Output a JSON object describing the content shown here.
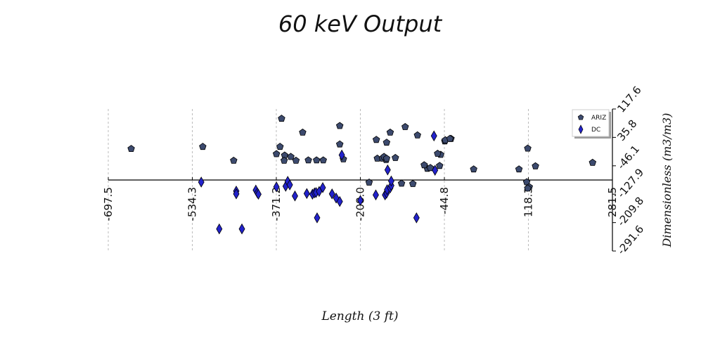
{
  "chart_data": {
    "type": "scatter",
    "title": "60 keV Output",
    "xlabel": "Length (3 ft)",
    "ylabel": "Dimensionless (m3/m3)",
    "xlim": [
      -697.5,
      281.5
    ],
    "ylim": [
      -291.6,
      117.6
    ],
    "xticks": [
      "-697.5",
      "-534.3",
      "-371.2",
      "-208.0",
      "-44.8",
      "118.3",
      "281.5"
    ],
    "yticks": [
      "117.6",
      "35.8",
      "-46.1",
      "-127.9",
      "-209.8",
      "-291.6"
    ],
    "grid": "x-only dashed",
    "legend_position": "top-right",
    "series": [
      {
        "name": "ARIZ",
        "marker": "pentagon",
        "color": "#3c4a6e",
        "points": [
          [
            -653,
            3
          ],
          [
            -514,
            9
          ],
          [
            -361,
            90
          ],
          [
            -320,
            50
          ],
          [
            -364,
            9
          ],
          [
            -371,
            -12
          ],
          [
            -355,
            -16
          ],
          [
            -343,
            -20
          ],
          [
            -356,
            -31
          ],
          [
            -333,
            -31
          ],
          [
            -309,
            -30
          ],
          [
            -293,
            -30
          ],
          [
            -280,
            -30
          ],
          [
            -248,
            69
          ],
          [
            -248,
            16
          ],
          [
            -241,
            -27
          ],
          [
            -454,
            -31
          ],
          [
            -191,
            -94
          ],
          [
            -177,
            29
          ],
          [
            -157,
            21
          ],
          [
            -175,
            -25
          ],
          [
            -165,
            -25
          ],
          [
            -158,
            -29
          ],
          [
            -150,
            50
          ],
          [
            -121,
            66
          ],
          [
            -78,
            -54
          ],
          [
            -54,
            -46
          ],
          [
            -44,
            25
          ],
          [
            -32,
            32
          ],
          [
            -140,
            -23
          ],
          [
            -52,
            -14
          ],
          [
            -58,
            -11
          ],
          [
            -162,
            -20
          ],
          [
            -43,
            28
          ],
          [
            -34,
            32
          ],
          [
            12,
            -56
          ],
          [
            100,
            -56
          ],
          [
            115,
            -93
          ],
          [
            120,
            -107
          ],
          [
            117,
            -111
          ],
          [
            132,
            -47
          ],
          [
            243,
            -37
          ],
          [
            -128,
            -97
          ],
          [
            -106,
            -98
          ],
          [
            -72,
            -52
          ],
          [
            -84,
            -44
          ],
          [
            -97,
            42
          ],
          [
            117,
            4
          ],
          [
            -157,
            -25
          ]
        ]
      },
      {
        "name": "DC",
        "marker": "diamond",
        "color": "#2222cc",
        "points": [
          [
            -517,
            -93
          ],
          [
            -449,
            -119
          ],
          [
            -449,
            -127
          ],
          [
            -411,
            -116
          ],
          [
            -408,
            -124
          ],
          [
            -406,
            -128
          ],
          [
            -371,
            -107
          ],
          [
            -353,
            -105
          ],
          [
            -349,
            -91
          ],
          [
            -345,
            -101
          ],
          [
            -335,
            -133
          ],
          [
            -312,
            -126
          ],
          [
            -301,
            -128
          ],
          [
            -297,
            -124
          ],
          [
            -294,
            -123
          ],
          [
            -288,
            -120
          ],
          [
            -281,
            -109
          ],
          [
            -263,
            -127
          ],
          [
            -255,
            -139
          ],
          [
            -248,
            -149
          ],
          [
            -244,
            -15
          ],
          [
            -292,
            -196
          ],
          [
            -208,
            -146
          ],
          [
            -178,
            -130
          ],
          [
            -160,
            -130
          ],
          [
            -157,
            -125
          ],
          [
            -156,
            -115
          ],
          [
            -150,
            -110
          ],
          [
            -148,
            -103
          ],
          [
            -148,
            -90
          ],
          [
            -155,
            -58
          ],
          [
            -65,
            40
          ],
          [
            -63,
            -59
          ],
          [
            -99,
            -196
          ],
          [
            -482,
            -228
          ],
          [
            -438,
            -228
          ]
        ]
      }
    ]
  },
  "colors": {
    "ariz_fill": "#3c4a6e",
    "dc_fill": "#2222cc",
    "grid": "#bbbbbb",
    "axis": "#000000"
  }
}
